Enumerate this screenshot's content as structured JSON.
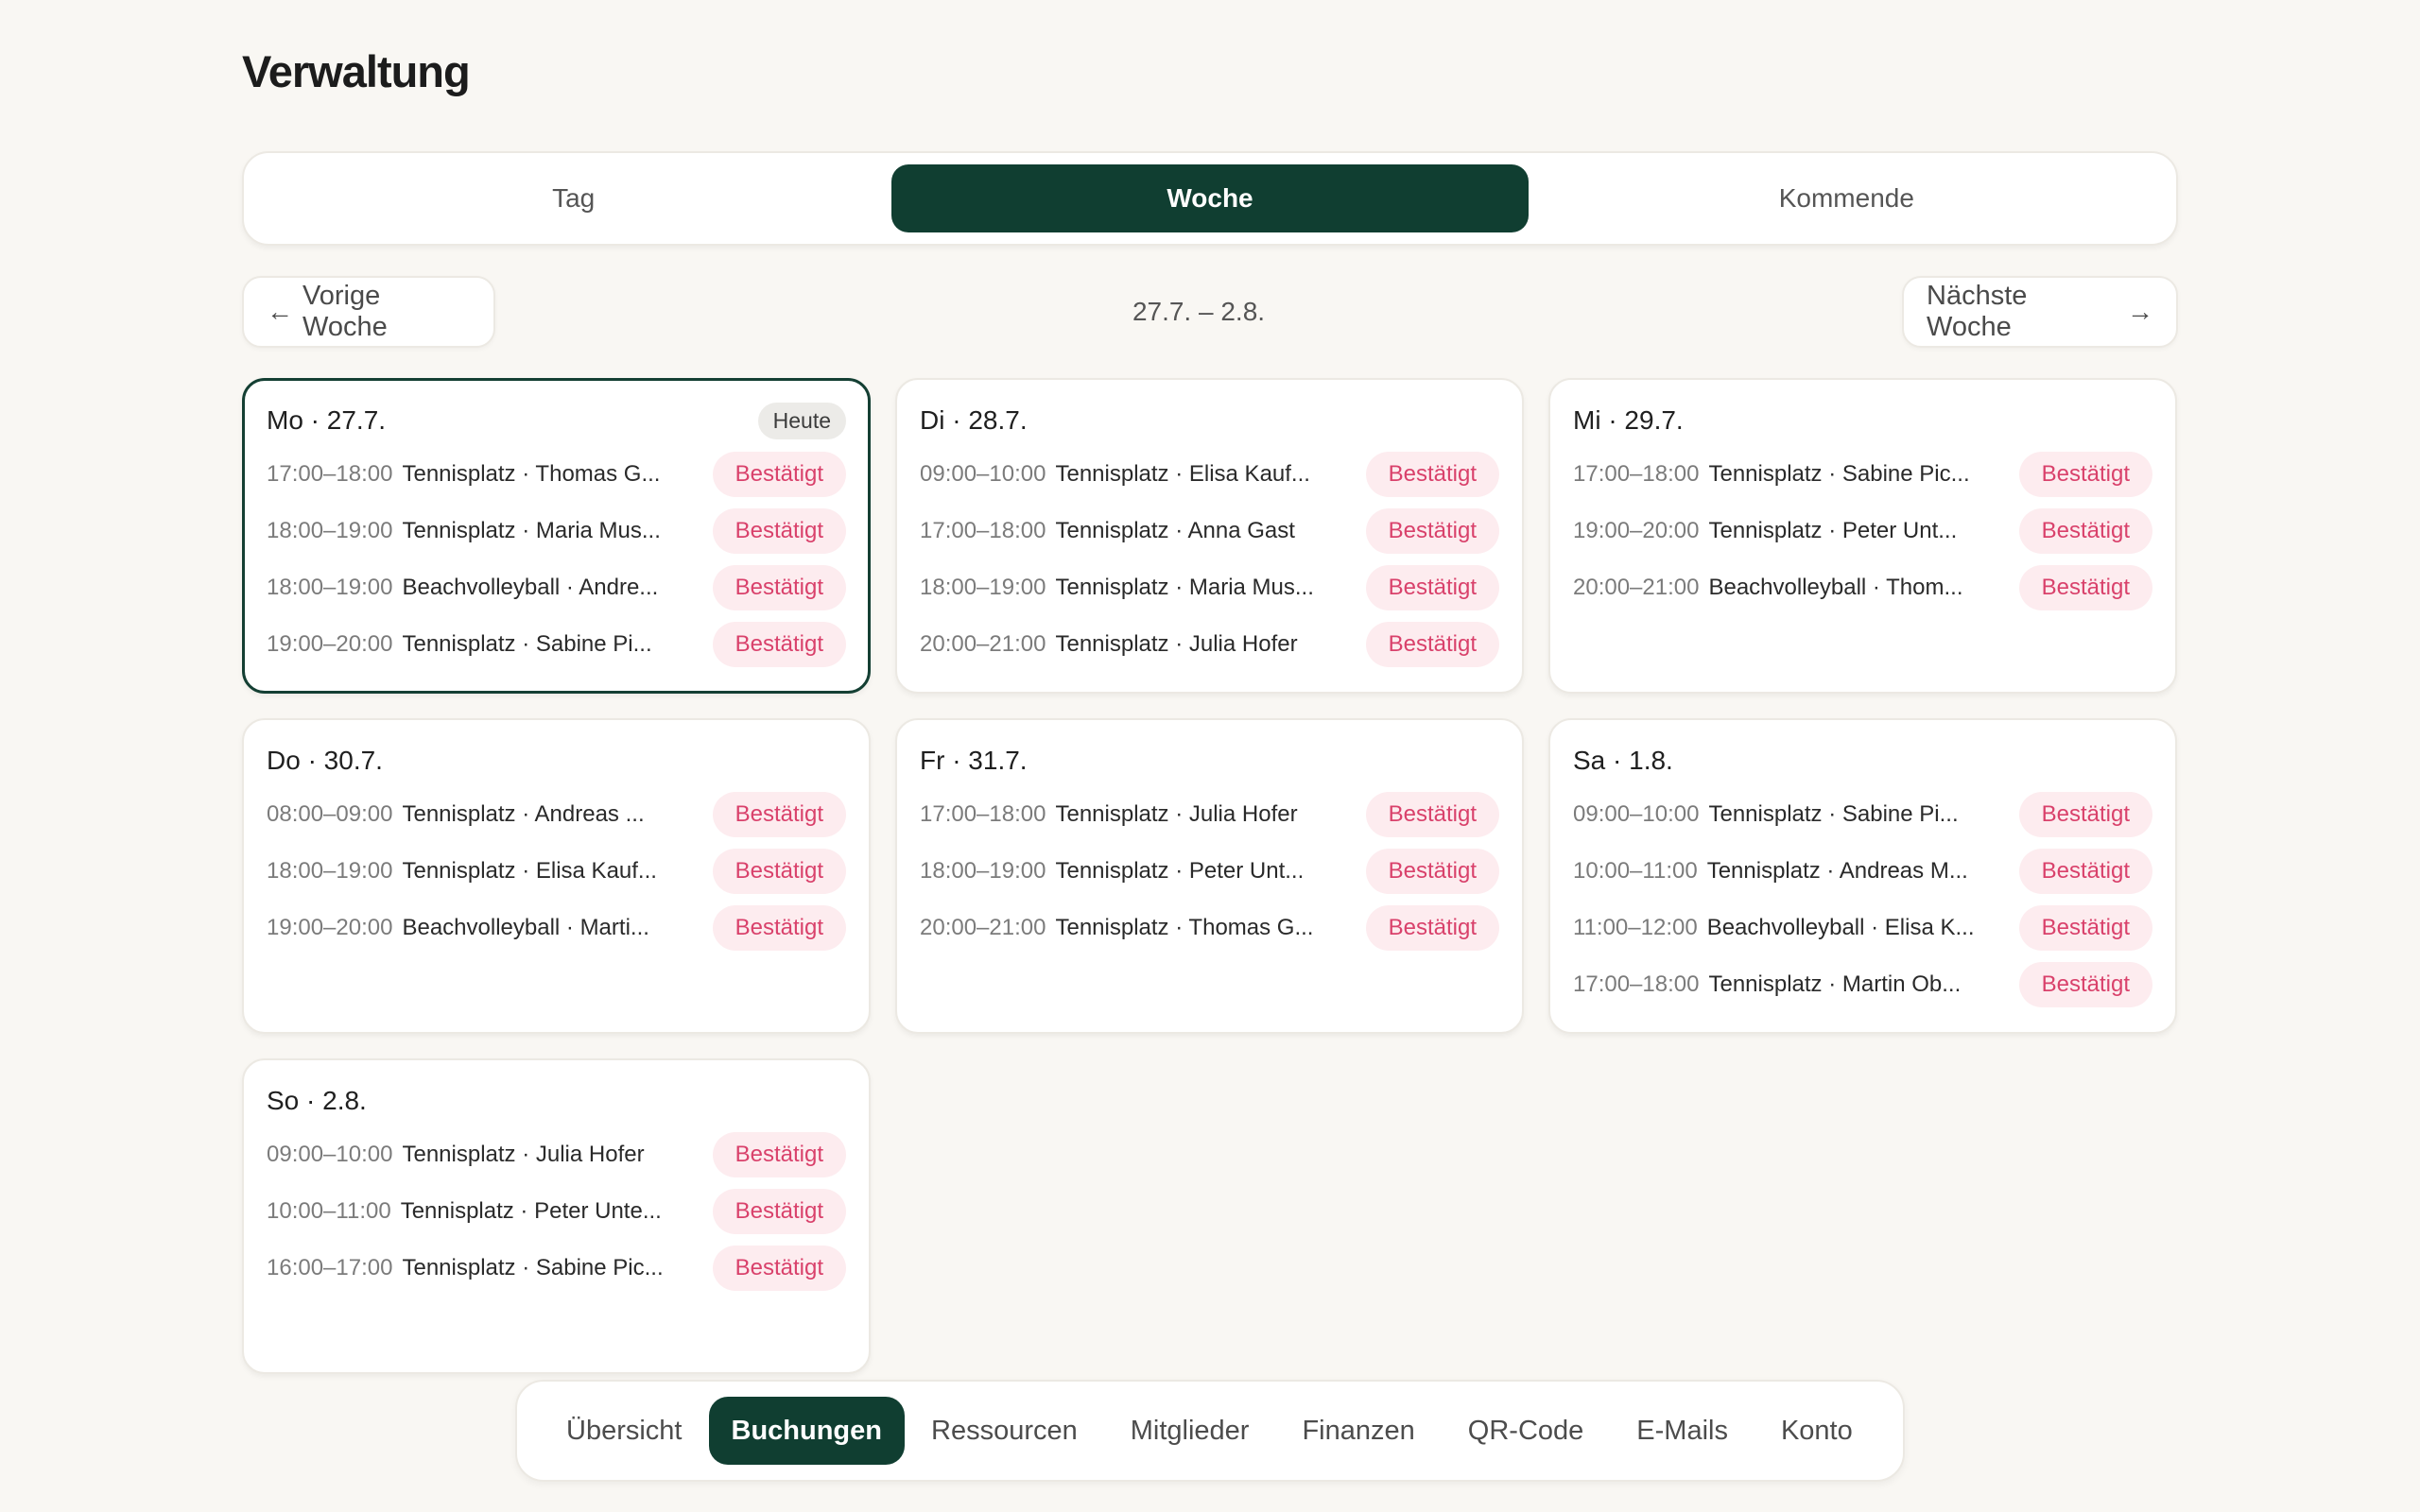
{
  "page": {
    "title": "Verwaltung"
  },
  "segments": [
    {
      "label": "Tag",
      "active": false
    },
    {
      "label": "Woche",
      "active": true
    },
    {
      "label": "Kommende",
      "active": false
    }
  ],
  "week_nav": {
    "prev_arrow": "←",
    "prev_label": "Vorige Woche",
    "range": "27.7. – 2.8.",
    "next_label": "Nächste Woche",
    "next_arrow": "→"
  },
  "days": [
    {
      "label": "Mo · 27.7.",
      "today": true,
      "badge": "Heute",
      "bookings": [
        {
          "time": "17:00–18:00",
          "desc": "Tennisplatz · Thomas G...",
          "status": "Bestätigt"
        },
        {
          "time": "18:00–19:00",
          "desc": "Tennisplatz · Maria Mus...",
          "status": "Bestätigt"
        },
        {
          "time": "18:00–19:00",
          "desc": "Beachvolleyball · Andre...",
          "status": "Bestätigt"
        },
        {
          "time": "19:00–20:00",
          "desc": "Tennisplatz · Sabine Pi...",
          "status": "Bestätigt"
        }
      ]
    },
    {
      "label": "Di · 28.7.",
      "today": false,
      "bookings": [
        {
          "time": "09:00–10:00",
          "desc": "Tennisplatz · Elisa Kauf...",
          "status": "Bestätigt"
        },
        {
          "time": "17:00–18:00",
          "desc": "Tennisplatz · Anna Gast",
          "status": "Bestätigt"
        },
        {
          "time": "18:00–19:00",
          "desc": "Tennisplatz · Maria Mus...",
          "status": "Bestätigt"
        },
        {
          "time": "20:00–21:00",
          "desc": "Tennisplatz · Julia Hofer",
          "status": "Bestätigt"
        }
      ]
    },
    {
      "label": "Mi · 29.7.",
      "today": false,
      "bookings": [
        {
          "time": "17:00–18:00",
          "desc": "Tennisplatz · Sabine Pic...",
          "status": "Bestätigt"
        },
        {
          "time": "19:00–20:00",
          "desc": "Tennisplatz · Peter Unt...",
          "status": "Bestätigt"
        },
        {
          "time": "20:00–21:00",
          "desc": "Beachvolleyball · Thom...",
          "status": "Bestätigt"
        }
      ]
    },
    {
      "label": "Do · 30.7.",
      "today": false,
      "bookings": [
        {
          "time": "08:00–09:00",
          "desc": "Tennisplatz · Andreas ...",
          "status": "Bestätigt"
        },
        {
          "time": "18:00–19:00",
          "desc": "Tennisplatz · Elisa Kauf...",
          "status": "Bestätigt"
        },
        {
          "time": "19:00–20:00",
          "desc": "Beachvolleyball · Marti...",
          "status": "Bestätigt"
        }
      ]
    },
    {
      "label": "Fr · 31.7.",
      "today": false,
      "bookings": [
        {
          "time": "17:00–18:00",
          "desc": "Tennisplatz · Julia Hofer",
          "status": "Bestätigt"
        },
        {
          "time": "18:00–19:00",
          "desc": "Tennisplatz · Peter Unt...",
          "status": "Bestätigt"
        },
        {
          "time": "20:00–21:00",
          "desc": "Tennisplatz · Thomas G...",
          "status": "Bestätigt"
        }
      ]
    },
    {
      "label": "Sa · 1.8.",
      "today": false,
      "bookings": [
        {
          "time": "09:00–10:00",
          "desc": "Tennisplatz · Sabine Pi...",
          "status": "Bestätigt"
        },
        {
          "time": "10:00–11:00",
          "desc": "Tennisplatz · Andreas M...",
          "status": "Bestätigt"
        },
        {
          "time": "11:00–12:00",
          "desc": "Beachvolleyball · Elisa K...",
          "status": "Bestätigt"
        },
        {
          "time": "17:00–18:00",
          "desc": "Tennisplatz · Martin Ob...",
          "status": "Bestätigt"
        }
      ]
    },
    {
      "label": "So · 2.8.",
      "today": false,
      "bookings": [
        {
          "time": "09:00–10:00",
          "desc": "Tennisplatz · Julia Hofer",
          "status": "Bestätigt"
        },
        {
          "time": "10:00–11:00",
          "desc": "Tennisplatz · Peter Unte...",
          "status": "Bestätigt"
        },
        {
          "time": "16:00–17:00",
          "desc": "Tennisplatz · Sabine Pic...",
          "status": "Bestätigt"
        }
      ]
    }
  ],
  "bottom_nav": [
    {
      "label": "Übersicht",
      "active": false
    },
    {
      "label": "Buchungen",
      "active": true
    },
    {
      "label": "Ressourcen",
      "active": false
    },
    {
      "label": "Mitglieder",
      "active": false
    },
    {
      "label": "Finanzen",
      "active": false
    },
    {
      "label": "QR-Code",
      "active": false
    },
    {
      "label": "E-Mails",
      "active": false
    },
    {
      "label": "Konto",
      "active": false
    }
  ],
  "colors": {
    "accent": "#103e31",
    "status_text": "#d9416b",
    "status_bg": "#fdecef",
    "background": "#f9f7f3"
  }
}
